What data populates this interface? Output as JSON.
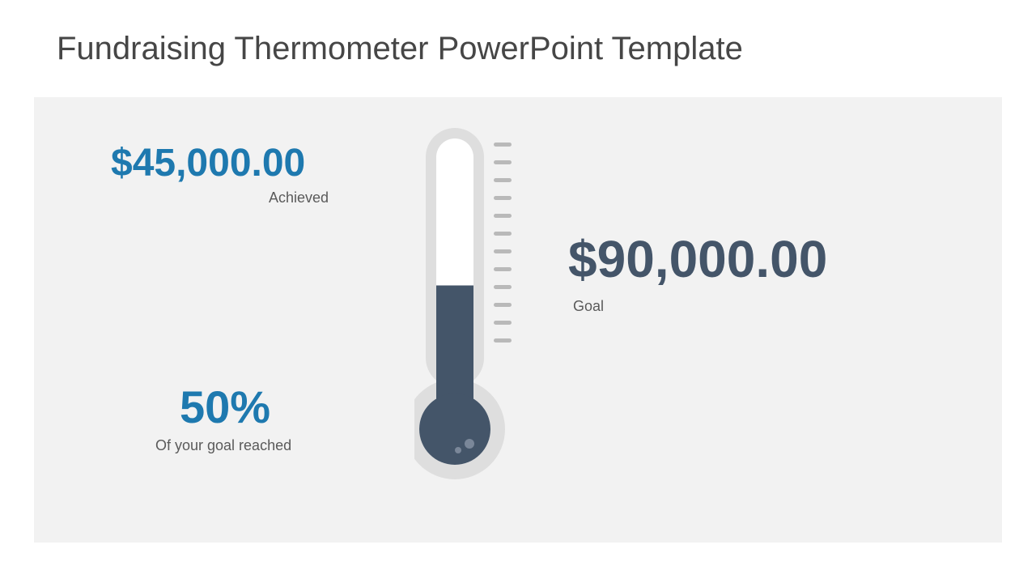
{
  "title": {
    "text": "Fundraising Thermometer PowerPoint Template",
    "color": "#464646",
    "fontsize": 40,
    "fontweight": 400
  },
  "panel": {
    "background_color": "#f2f2f2"
  },
  "achieved": {
    "amount": "$45,000.00",
    "label": "Achieved",
    "amount_color": "#1e79af",
    "amount_fontsize": 48,
    "amount_fontweight": 700,
    "label_color": "#5a5a5a",
    "label_fontsize": 18
  },
  "percent": {
    "value": "50%",
    "label": "Of your goal reached",
    "value_color": "#1e79af",
    "value_fontsize": 56,
    "value_fontweight": 700,
    "label_color": "#5a5a5a",
    "label_fontsize": 18
  },
  "goal": {
    "amount": "$90,000.00",
    "label": "Goal",
    "amount_color": "#445569",
    "amount_fontsize": 64,
    "amount_fontweight": 700,
    "label_color": "#5a5a5a",
    "label_fontsize": 18
  },
  "thermometer": {
    "type": "infographic",
    "fill_percent": 50,
    "outer_color": "#dedede",
    "inner_bg_color": "#ffffff",
    "fluid_color": "#445569",
    "highlight_color": "#7a8799",
    "tick_color": "#b9b9b9",
    "tick_count": 12,
    "tube_width": 72,
    "tube_inner_width": 46,
    "tube_height": 320,
    "bulb_outer_radius": 62,
    "bulb_inner_radius": 44,
    "tick_width": 22,
    "tick_height": 5,
    "tick_gap": 22
  }
}
